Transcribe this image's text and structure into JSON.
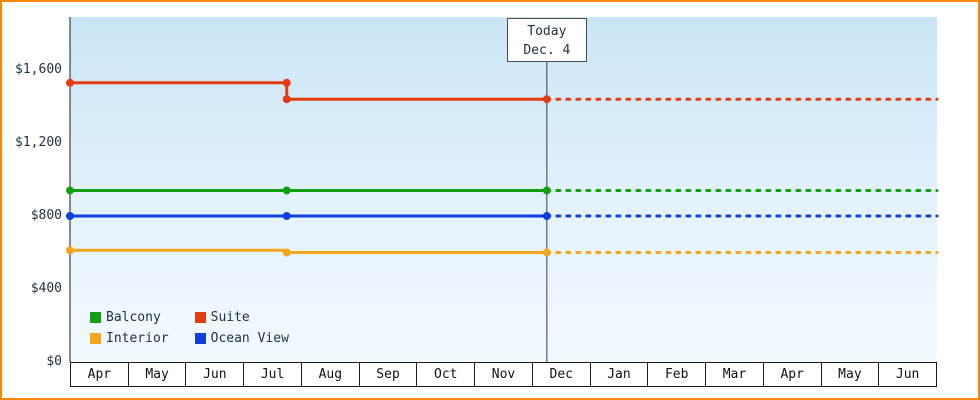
{
  "chart_data": {
    "type": "line",
    "title": "",
    "x_axis": {
      "unit": "month",
      "labels": [
        "Apr",
        "May",
        "Jun",
        "Jul",
        "Aug",
        "Sep",
        "Oct",
        "Nov",
        "Dec",
        "Jan",
        "Feb",
        "Mar",
        "Apr",
        "May",
        "Jun"
      ]
    },
    "y_axis": {
      "tick_labels": [
        "$1,600",
        "$1,200",
        "$800",
        "$400",
        "$0"
      ],
      "tick_values": [
        1600,
        1200,
        800,
        400,
        0
      ],
      "min": 0,
      "max": 1600
    },
    "today": {
      "line1": "Today",
      "line2": "Dec. 4",
      "month_index": 8.25
    },
    "series": [
      {
        "name": "Suite",
        "color": "#e53b12",
        "solid": [
          [
            0,
            1530
          ],
          [
            3.75,
            1530
          ],
          [
            3.75,
            1440
          ],
          [
            8.25,
            1440
          ]
        ],
        "dotted": [
          [
            8.25,
            1440
          ],
          [
            15,
            1440
          ]
        ],
        "markers": [
          [
            0,
            1530
          ],
          [
            3.75,
            1530
          ],
          [
            3.75,
            1440
          ],
          [
            8.25,
            1440
          ]
        ]
      },
      {
        "name": "Balcony",
        "color": "#12a012",
        "solid": [
          [
            0,
            940
          ],
          [
            8.25,
            940
          ]
        ],
        "dotted": [
          [
            8.25,
            940
          ],
          [
            15,
            940
          ]
        ],
        "markers": [
          [
            0,
            940
          ],
          [
            3.75,
            940
          ],
          [
            8.25,
            940
          ]
        ]
      },
      {
        "name": "Ocean View",
        "color": "#0d3fdf",
        "solid": [
          [
            0,
            800
          ],
          [
            8.25,
            800
          ]
        ],
        "dotted": [
          [
            8.25,
            800
          ],
          [
            15,
            800
          ]
        ],
        "markers": [
          [
            0,
            800
          ],
          [
            3.75,
            800
          ],
          [
            8.25,
            800
          ]
        ]
      },
      {
        "name": "Interior",
        "color": "#f2a61c",
        "solid": [
          [
            0,
            612
          ],
          [
            3.75,
            612
          ],
          [
            3.75,
            600
          ],
          [
            8.25,
            600
          ]
        ],
        "dotted": [
          [
            8.25,
            600
          ],
          [
            15,
            600
          ]
        ],
        "markers": [
          [
            0,
            612
          ],
          [
            3.75,
            600
          ],
          [
            8.25,
            600
          ]
        ]
      }
    ],
    "legend": [
      {
        "label": "Balcony",
        "color": "#12a012"
      },
      {
        "label": "Suite",
        "color": "#e53b12"
      },
      {
        "label": "Interior",
        "color": "#f2a61c"
      },
      {
        "label": "Ocean View",
        "color": "#0d3fdf"
      }
    ],
    "grid": "off",
    "legend_position": "bottom-left-inside"
  },
  "colors": {
    "frame_border": "#ff8400",
    "plot_bg_top": "#c9e5f6",
    "plot_bg_bottom": "#f2fafe",
    "axis": "#1a1a1a",
    "text": "#223344"
  }
}
